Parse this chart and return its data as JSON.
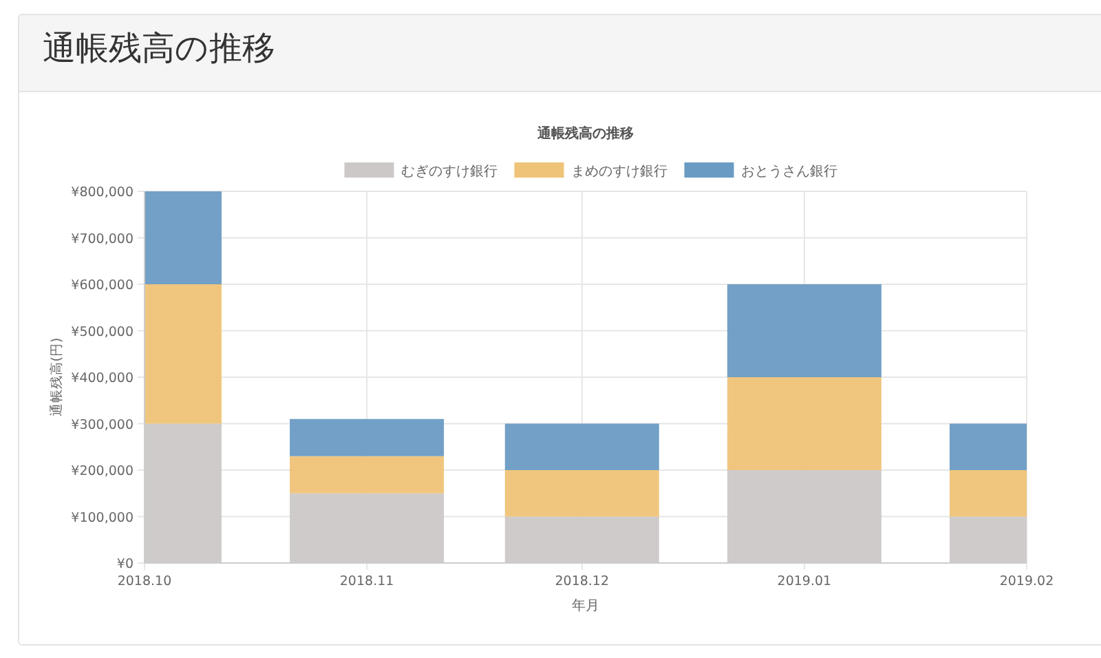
{
  "chart_data": {
    "type": "bar",
    "title": "通帳残高の推移",
    "subtitle": "通帳残高の推移",
    "xlabel": "年月",
    "ylabel": "通帳残高(円)",
    "x": [
      "2018-10",
      "2018-11",
      "2018-12",
      "2019-01",
      "2019-02"
    ],
    "stacked": true,
    "legend": "top",
    "grid": true,
    "series": [
      {
        "name": "むぎのすけ銀行",
        "color": "#cdc8c8",
        "values": [
          300000,
          150000,
          100000,
          200000,
          100000
        ]
      },
      {
        "name": "まめのすけ銀行",
        "color": "#efc378",
        "values": [
          300000,
          80000,
          100000,
          200000,
          100000
        ]
      },
      {
        "name": "おとうさん銀行",
        "color": "#6a9bc3",
        "values": [
          200000,
          80000,
          100000,
          200000,
          100000
        ]
      }
    ],
    "xlim": [
      "2018-10",
      "2019-02"
    ],
    "xticks": [
      {
        "value": "2018-10",
        "label": "2018.10"
      },
      {
        "value": "2018-11",
        "label": "2018.11"
      },
      {
        "value": "2018-12",
        "label": "2018.12"
      },
      {
        "value": "2019-01",
        "label": "2019.01"
      },
      {
        "value": "2019-02",
        "label": "2019.02"
      }
    ],
    "ylim": [
      0,
      800000
    ],
    "yticks": [
      {
        "value": 0,
        "label": "¥0"
      },
      {
        "value": 100000,
        "label": "¥100,000"
      },
      {
        "value": 200000,
        "label": "¥200,000"
      },
      {
        "value": 300000,
        "label": "¥300,000"
      },
      {
        "value": 400000,
        "label": "¥400,000"
      },
      {
        "value": 500000,
        "label": "¥500,000"
      },
      {
        "value": 600000,
        "label": "¥600,000"
      },
      {
        "value": 700000,
        "label": "¥700,000"
      },
      {
        "value": 800000,
        "label": "¥800,000"
      }
    ]
  }
}
